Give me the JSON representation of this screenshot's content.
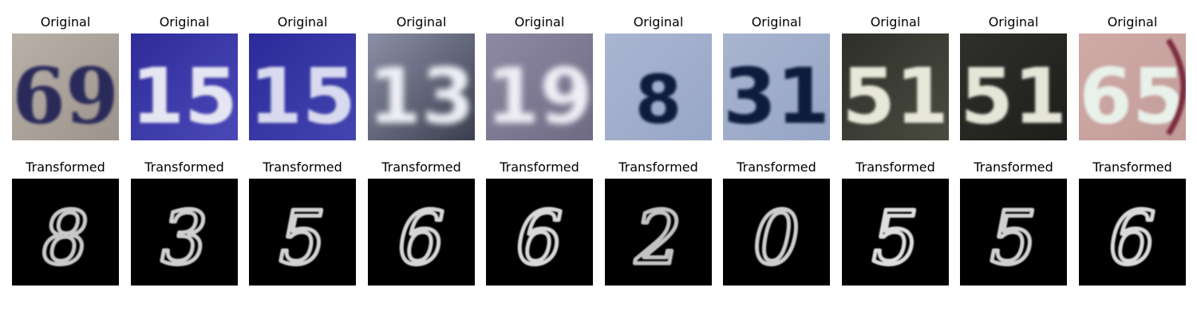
{
  "labels": {
    "original": "Original",
    "transformed": "Transformed"
  },
  "originals": [
    {
      "text": "69",
      "bg": "#b9b1a8",
      "bg2": "#9c948c",
      "fg": "#2a2a5a",
      "style": "serif-dark"
    },
    {
      "text": "15",
      "bg": "#2f2c9a",
      "bg2": "#4b48b8",
      "fg": "#e6e6f2",
      "style": "light"
    },
    {
      "text": "15",
      "bg": "#2a2a9a",
      "bg2": "#4545b0",
      "fg": "#d9daef",
      "style": "light"
    },
    {
      "text": "13",
      "bg": "#8c90a6",
      "bg2": "#3a3f4f",
      "fg": "#eef0f6",
      "style": "blur"
    },
    {
      "text": "19",
      "bg": "#8d8aa3",
      "bg2": "#6e6b83",
      "fg": "#efeff6",
      "style": "blur"
    },
    {
      "text": "8",
      "bg": "#a9b6d2",
      "bg2": "#98a7c6",
      "fg": "#0c1a3c",
      "style": "dark"
    },
    {
      "text": "31",
      "bg": "#a7b5d0",
      "bg2": "#96a5c4",
      "fg": "#0e1c3e",
      "style": "dark"
    },
    {
      "text": "51",
      "bg": "#2e2f2a",
      "bg2": "#4a4b3f",
      "fg": "#e7e8d9",
      "style": "light"
    },
    {
      "text": "51",
      "bg": "#2f302b",
      "bg2": "#1d1e1a",
      "fg": "#e5e6d8",
      "style": "light"
    },
    {
      "text": "65",
      "bg": "#d0aaa6",
      "bg2": "#c29c98",
      "fg": "#e8f1ea",
      "style": "pink"
    }
  ],
  "transformed": [
    {
      "digit": "8",
      "fg": "#c9c9c9"
    },
    {
      "digit": "3",
      "fg": "#cfcfcf"
    },
    {
      "digit": "5",
      "fg": "#d2d2d2"
    },
    {
      "digit": "6",
      "fg": "#d5d5d5"
    },
    {
      "digit": "6",
      "fg": "#d8d8d8"
    },
    {
      "digit": "2",
      "fg": "#c3c3c3"
    },
    {
      "digit": "0",
      "fg": "#cdcdcd"
    },
    {
      "digit": "5",
      "fg": "#dddddd"
    },
    {
      "digit": "5",
      "fg": "#d0d0d0"
    },
    {
      "digit": "6",
      "fg": "#d9d9d9"
    }
  ]
}
